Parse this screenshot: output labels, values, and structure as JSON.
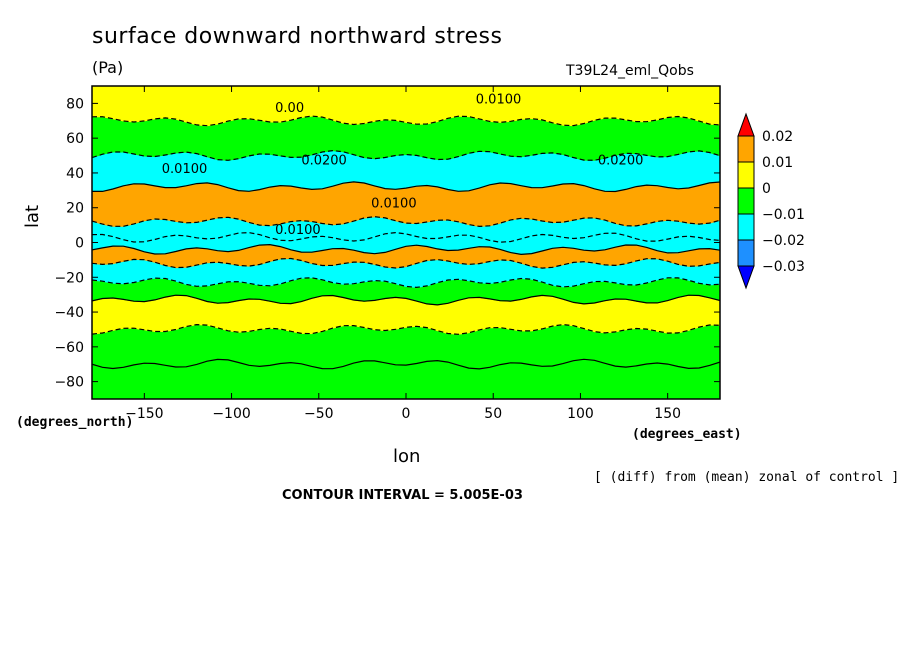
{
  "chart_data": {
    "type": "heatmap",
    "title": "surface downward northward stress",
    "subtitle": "(Pa)",
    "run_label": "T39L24_eml_Qobs",
    "xlabel": "lon",
    "ylabel": "lat",
    "x_units": "(degrees_east)",
    "y_units": "(degrees_north)",
    "xlim": [
      -180,
      180
    ],
    "ylim": [
      -90,
      90
    ],
    "x_ticks": [
      -150,
      -100,
      -50,
      0,
      50,
      100,
      150
    ],
    "y_ticks": [
      80,
      60,
      40,
      20,
      0,
      -20,
      -40,
      -60,
      -80
    ],
    "x_tick_labels": [
      "−150",
      "−100",
      "−50",
      "0",
      "50",
      "100",
      "150"
    ],
    "y_tick_labels": [
      "80",
      "60",
      "40",
      "20",
      "0",
      "−20",
      "−40",
      "−60",
      "−80"
    ],
    "colorbar": {
      "labels": [
        "0.02",
        "0.01",
        "0",
        "−0.01",
        "−0.02",
        "−0.03"
      ],
      "colors": [
        "#ff0000",
        "#ffa500",
        "#ffff00",
        "#00ff00",
        "#00ffff",
        "#1e90ff",
        "#0000ff"
      ]
    },
    "bands": [
      {
        "lat": [
          -90,
          -70
        ],
        "value": 0.0
      },
      {
        "lat": [
          -70,
          -50
        ],
        "value": -0.005
      },
      {
        "lat": [
          -50,
          -33
        ],
        "value": 0.008
      },
      {
        "lat": [
          -33,
          -23
        ],
        "value": -0.003
      },
      {
        "lat": [
          -23,
          -12
        ],
        "value": -0.012
      },
      {
        "lat": [
          -12,
          -4
        ],
        "value": 0.011
      },
      {
        "lat": [
          -4,
          3
        ],
        "value": -0.01
      },
      {
        "lat": [
          3,
          12
        ],
        "value": -0.013
      },
      {
        "lat": [
          12,
          32
        ],
        "value": 0.012
      },
      {
        "lat": [
          32,
          50
        ],
        "value": -0.016
      },
      {
        "lat": [
          50,
          70
        ],
        "value": -0.004
      },
      {
        "lat": [
          70,
          90
        ],
        "value": 0.002
      }
    ],
    "contour_labels": [
      "0.00",
      "0.0100",
      "0.0200",
      "0.0100",
      "0.0200",
      "0.0100",
      "0.0100"
    ],
    "annotations": [
      "[ (diff) from (mean) zonal of control ]",
      "CONTOUR INTERVAL = 5.005E-03"
    ]
  }
}
